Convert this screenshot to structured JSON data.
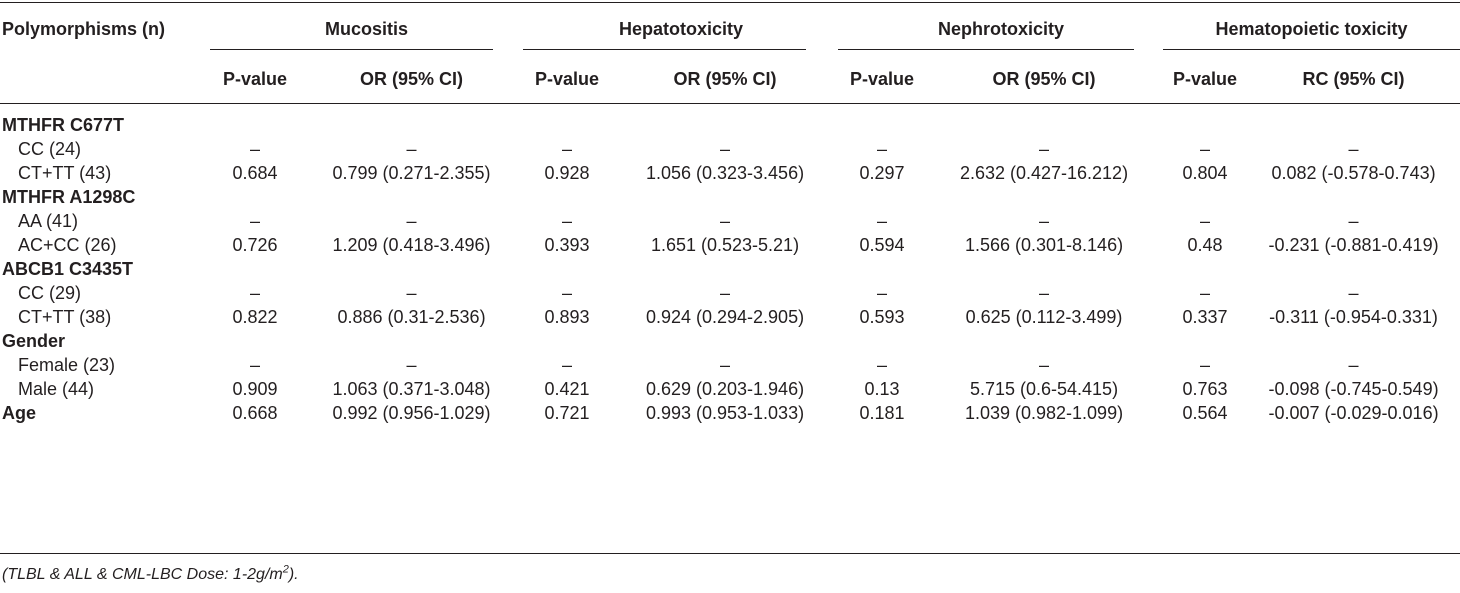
{
  "table": {
    "row_header": "Polymorphisms (n)",
    "groups": [
      "Mucositis",
      "Hepatotoxicity",
      "Nephrotoxicity",
      "Hematopoietic toxicity"
    ],
    "subheaders": [
      "P-value",
      "OR (95% CI)",
      "P-value",
      "OR (95% CI)",
      "P-value",
      "OR (95% CI)",
      "P-value",
      "RC (95% CI)"
    ],
    "sections": [
      {
        "title": "MTHFR C677T",
        "rows": [
          {
            "label": "CC (24)",
            "values": [
              "–",
              "–",
              "–",
              "–",
              "–",
              "–",
              "–",
              "–"
            ]
          },
          {
            "label": "CT+TT (43)",
            "values": [
              "0.684",
              "0.799 (0.271-2.355)",
              "0.928",
              "1.056 (0.323-3.456)",
              "0.297",
              "2.632 (0.427-16.212)",
              "0.804",
              "0.082 (-0.578-0.743)"
            ]
          }
        ]
      },
      {
        "title": "MTHFR A1298C",
        "rows": [
          {
            "label": "AA (41)",
            "values": [
              "–",
              "–",
              "–",
              "–",
              "–",
              "–",
              "–",
              "–"
            ]
          },
          {
            "label": "AC+CC (26)",
            "values": [
              "0.726",
              "1.209 (0.418-3.496)",
              "0.393",
              "1.651 (0.523-5.21)",
              "0.594",
              "1.566 (0.301-8.146)",
              "0.48",
              "-0.231 (-0.881-0.419)"
            ]
          }
        ]
      },
      {
        "title": "ABCB1 C3435T",
        "rows": [
          {
            "label": "CC (29)",
            "values": [
              "–",
              "–",
              "–",
              "–",
              "–",
              "–",
              "–",
              "–"
            ]
          },
          {
            "label": "CT+TT (38)",
            "values": [
              "0.822",
              "0.886 (0.31-2.536)",
              "0.893",
              "0.924 (0.294-2.905)",
              "0.593",
              "0.625 (0.112-3.499)",
              "0.337",
              "-0.311 (-0.954-0.331)"
            ]
          }
        ]
      },
      {
        "title": "Gender",
        "rows": [
          {
            "label": "Female (23)",
            "values": [
              "–",
              "–",
              "–",
              "–",
              "–",
              "–",
              "–",
              "–"
            ]
          },
          {
            "label": "Male (44)",
            "values": [
              "0.909",
              "1.063 (0.371-3.048)",
              "0.421",
              "0.629 (0.203-1.946)",
              "0.13",
              "5.715 (0.6-54.415)",
              "0.763",
              "-0.098 (-0.745-0.549)"
            ]
          }
        ]
      }
    ],
    "age_row": {
      "title": "Age",
      "values": [
        "0.668",
        "0.992 (0.956-1.029)",
        "0.721",
        "0.993 (0.953-1.033)",
        "0.181",
        "1.039 (0.982-1.099)",
        "0.564",
        "-0.007 (-0.029-0.016)"
      ]
    }
  },
  "footnote": {
    "prefix": "(TLBL & ALL & CML-LBC Dose: 1-2g/m",
    "sup": "2",
    "suffix": ")."
  }
}
